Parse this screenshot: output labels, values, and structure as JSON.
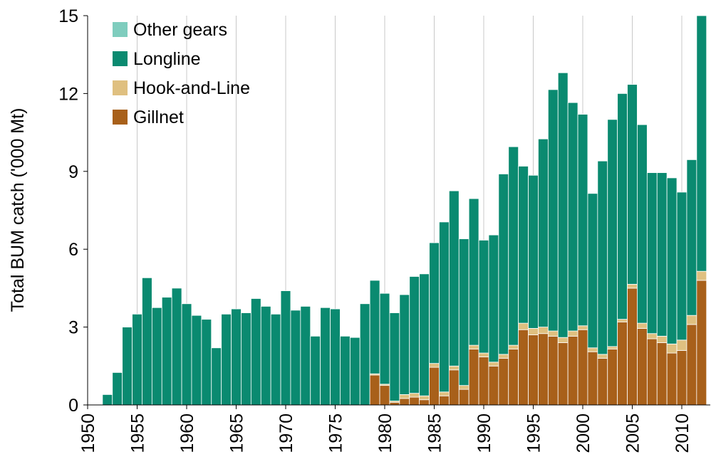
{
  "chart_data": {
    "type": "bar",
    "stacked": true,
    "xlabel": "",
    "ylabel": "Total BUM catch ('000 Mt)",
    "ylim": [
      0,
      15
    ],
    "yticks": [
      "0",
      "3",
      "6",
      "9",
      "12",
      "15"
    ],
    "xticks": [
      "1950",
      "1955",
      "1960",
      "1965",
      "1970",
      "1975",
      "1980",
      "1985",
      "1990",
      "1995",
      "2000",
      "2005",
      "2010"
    ],
    "grid": "vertical lines at x ticks",
    "legend_position": "top-left",
    "categories": [
      1950,
      1951,
      1952,
      1953,
      1954,
      1955,
      1956,
      1957,
      1958,
      1959,
      1960,
      1961,
      1962,
      1963,
      1964,
      1965,
      1966,
      1967,
      1968,
      1969,
      1970,
      1971,
      1972,
      1973,
      1974,
      1975,
      1976,
      1977,
      1978,
      1979,
      1980,
      1981,
      1982,
      1983,
      1984,
      1985,
      1986,
      1987,
      1988,
      1989,
      1990,
      1991,
      1992,
      1993,
      1994,
      1995,
      1996,
      1997,
      1998,
      1999,
      2000,
      2001,
      2002,
      2003,
      2004,
      2005,
      2006,
      2007,
      2008,
      2009,
      2010,
      2011,
      2012
    ],
    "series": [
      {
        "name": "Gillnet",
        "color": "#A8601A",
        "values": [
          0,
          0,
          0,
          0,
          0,
          0,
          0,
          0,
          0,
          0,
          0,
          0,
          0,
          0,
          0,
          0,
          0,
          0,
          0,
          0,
          0,
          0,
          0,
          0,
          0,
          0,
          0,
          0,
          0,
          1.15,
          0.75,
          0.1,
          0.25,
          0.3,
          0.2,
          1.45,
          0.35,
          1.35,
          0.6,
          2.15,
          1.85,
          1.5,
          1.8,
          2.15,
          2.9,
          2.7,
          2.75,
          2.65,
          2.4,
          2.65,
          2.9,
          2.05,
          1.8,
          2.15,
          3.2,
          4.5,
          2.95,
          2.55,
          2.4,
          2.0,
          2.1,
          3.1,
          4.8
        ]
      },
      {
        "name": "Hook-and-Line",
        "color": "#DFC080",
        "values": [
          0,
          0,
          0,
          0,
          0,
          0,
          0,
          0,
          0,
          0,
          0,
          0,
          0,
          0,
          0,
          0,
          0,
          0,
          0,
          0,
          0,
          0,
          0,
          0,
          0,
          0,
          0,
          0,
          0,
          0.05,
          0.05,
          0.05,
          0.15,
          0.15,
          0.15,
          0.15,
          0.15,
          0.15,
          0.15,
          0.15,
          0.15,
          0.15,
          0.15,
          0.15,
          0.25,
          0.25,
          0.25,
          0.2,
          0.2,
          0.2,
          0.15,
          0.15,
          0.15,
          0.1,
          0.1,
          0.15,
          0.2,
          0.2,
          0.25,
          0.35,
          0.4,
          0.35,
          0.35
        ]
      },
      {
        "name": "Longline",
        "color": "#0A8A70",
        "values": [
          0,
          0,
          0.4,
          1.25,
          3.0,
          3.5,
          4.9,
          3.75,
          4.15,
          4.5,
          3.9,
          3.45,
          3.3,
          2.2,
          3.5,
          3.7,
          3.55,
          4.1,
          3.8,
          3.5,
          4.4,
          3.65,
          3.8,
          2.65,
          3.75,
          3.7,
          2.65,
          2.6,
          3.9,
          3.6,
          3.5,
          3.4,
          3.85,
          4.5,
          4.7,
          4.65,
          6.55,
          6.75,
          5.65,
          5.65,
          4.35,
          4.9,
          6.95,
          7.65,
          6.05,
          5.9,
          7.25,
          9.3,
          10.2,
          8.8,
          8.15,
          5.95,
          7.45,
          8.75,
          8.7,
          7.7,
          7.65,
          6.2,
          6.3,
          6.4,
          5.7,
          6.0,
          9.95
        ]
      },
      {
        "name": "Other gears",
        "color": "#7FCDBE",
        "values": [
          0,
          0,
          0,
          0,
          0,
          0,
          0,
          0,
          0,
          0,
          0,
          0,
          0,
          0,
          0,
          0,
          0,
          0,
          0,
          0,
          0,
          0,
          0,
          0,
          0,
          0,
          0,
          0,
          0,
          0,
          0,
          0,
          0,
          0,
          0,
          0,
          0,
          0,
          0,
          0,
          0,
          0,
          0,
          0,
          0,
          0,
          0,
          0,
          0,
          0,
          0,
          0,
          0,
          0,
          0,
          0,
          0,
          0,
          0,
          0,
          0,
          0,
          0
        ]
      }
    ],
    "legend_order": [
      "Other gears",
      "Longline",
      "Hook-and-Line",
      "Gillnet"
    ]
  }
}
